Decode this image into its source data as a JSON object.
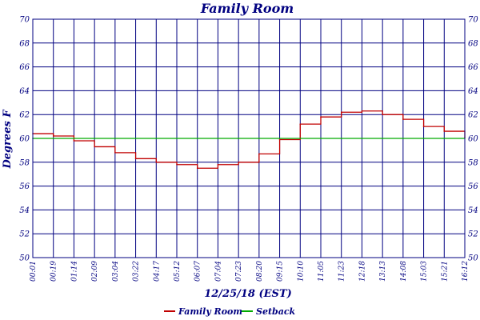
{
  "chart_data": {
    "type": "line",
    "title": "Family Room",
    "xlabel": "12/25/18 (EST)",
    "ylabel": "Degrees F",
    "ylim": [
      50,
      70
    ],
    "yticks": [
      50,
      52,
      54,
      56,
      58,
      60,
      62,
      64,
      66,
      68,
      70
    ],
    "grid": true,
    "legend_position": "bottom-center",
    "x_tick_labels": [
      "00:01",
      "00:19",
      "01:14",
      "02:09",
      "03:04",
      "03:22",
      "04:17",
      "05:12",
      "06:07",
      "07:04",
      "07:23",
      "08:20",
      "09:15",
      "10:10",
      "11:05",
      "11:23",
      "12:18",
      "13:13",
      "14:08",
      "15:03",
      "15:21",
      "16:12"
    ],
    "series": [
      {
        "name": "Family Room",
        "color": "#c00000",
        "values": [
          60.4,
          60.2,
          59.8,
          59.3,
          58.8,
          58.3,
          58.0,
          57.8,
          57.5,
          57.8,
          58.0,
          58.7,
          59.9,
          61.2,
          61.8,
          62.2,
          62.3,
          62.0,
          61.6,
          61.0,
          60.6,
          60.1
        ]
      },
      {
        "name": "Setback",
        "color": "#00aa00",
        "values": [
          60,
          60,
          60,
          60,
          60,
          60,
          60,
          60,
          60,
          60,
          60,
          60,
          60,
          60,
          60,
          60,
          60,
          60,
          60,
          60,
          60,
          60
        ]
      }
    ]
  }
}
